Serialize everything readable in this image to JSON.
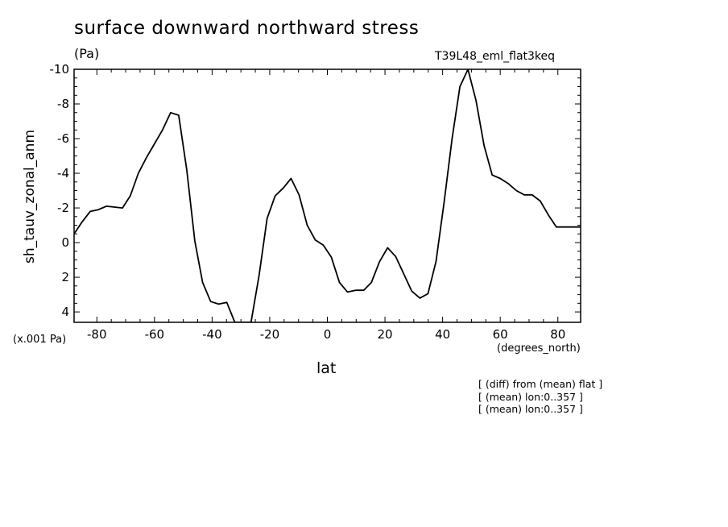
{
  "chart_data": {
    "type": "line",
    "title": "surface downward northward stress",
    "units": "(Pa)",
    "run_name": "T39L48_eml_flat3keq",
    "scale_note": "(x.001 Pa)",
    "xlabel": "lat",
    "x_units": "(degrees_north)",
    "ylabel": "sh_tauv_zonal_anm",
    "xlim": [
      -87.9,
      87.9
    ],
    "ylim": [
      4.6,
      -10
    ],
    "y_axis_inverted": true,
    "x_ticks": [
      -80,
      -60,
      -40,
      -20,
      0,
      20,
      40,
      60,
      80
    ],
    "x_tick_labels": [
      "-80",
      "-60",
      "-40",
      "-20",
      "0",
      "20",
      "40",
      "60",
      "80"
    ],
    "y_ticks": [
      4,
      2,
      0,
      -2,
      -4,
      -6,
      -8,
      -10
    ],
    "y_tick_labels": [
      "4",
      "2",
      "0",
      "-2",
      "-4",
      "-6",
      "-8",
      "-10"
    ],
    "grid": false,
    "series": [
      {
        "x": [
          -87.9,
          -85.1,
          -82.3,
          -79.5,
          -76.7,
          -73.9,
          -71.1,
          -68.4,
          -65.6,
          -62.8,
          -60.0,
          -57.2,
          -54.4,
          -51.6,
          -48.8,
          -46.0,
          -43.3,
          -40.5,
          -37.7,
          -34.9,
          -32.1,
          -29.3,
          -26.5,
          -23.7,
          -20.9,
          -18.1,
          -15.3,
          -12.6,
          -9.8,
          -7.0,
          -4.2,
          -1.4,
          1.4,
          4.2,
          7.0,
          9.8,
          12.6,
          15.3,
          18.1,
          20.9,
          23.7,
          26.5,
          29.3,
          32.1,
          34.9,
          37.7,
          40.5,
          43.3,
          46.0,
          48.8,
          51.6,
          54.4,
          57.2,
          60.0,
          62.8,
          65.6,
          68.4,
          71.1,
          73.9,
          76.7,
          79.5,
          82.3,
          85.1,
          87.9
        ],
        "y": [
          -0.5,
          -1.2,
          -1.8,
          -1.9,
          -2.1,
          -2.05,
          -2.0,
          -2.7,
          -4.0,
          -4.9,
          -5.7,
          -6.5,
          -7.5,
          -7.35,
          -4.2,
          -0.1,
          2.3,
          3.4,
          3.55,
          3.45,
          4.6,
          4.6,
          4.6,
          1.9,
          -1.4,
          -2.7,
          -3.15,
          -3.7,
          -2.75,
          -1.0,
          -0.15,
          0.15,
          0.85,
          2.3,
          2.85,
          2.75,
          2.75,
          2.3,
          1.1,
          0.3,
          0.8,
          1.8,
          2.8,
          3.2,
          2.95,
          1.1,
          -2.3,
          -6.0,
          -9.0,
          -10.0,
          -8.2,
          -5.6,
          -3.9,
          -3.7,
          -3.4,
          -3.0,
          -2.75,
          -2.75,
          -2.4,
          -1.6,
          -0.9,
          -0.9,
          -0.9,
          -0.9
        ]
      }
    ],
    "notes": [
      "[ (diff) from (mean) flat ]",
      "[ (mean) lon:0..357 ]",
      "[ (mean) lon:0..357 ]"
    ]
  }
}
